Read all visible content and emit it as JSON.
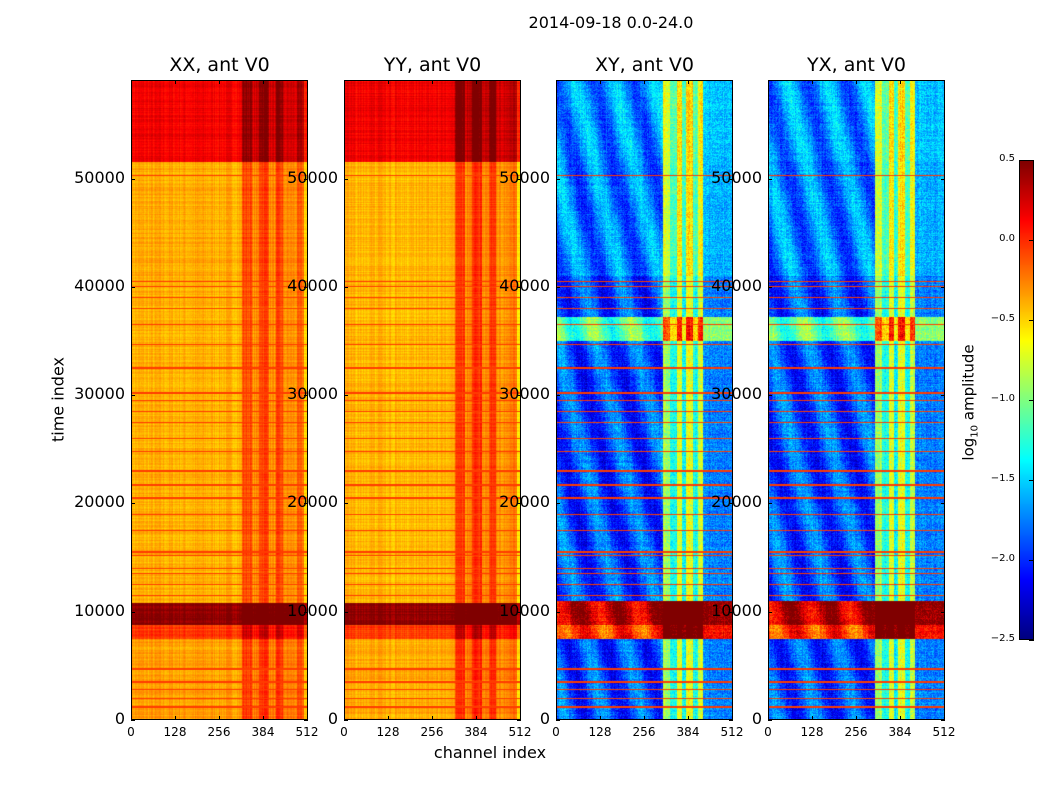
{
  "chart_data": {
    "type": "heatmap",
    "title": "2014-09-18 0.0-24.0",
    "xlabel": "channel index",
    "ylabel": "time index",
    "xlim": [
      0,
      512
    ],
    "ylim": [
      0,
      59100
    ],
    "xticks": [
      "0",
      "128",
      "256",
      "384",
      "512"
    ],
    "xtick_values": [
      0,
      128,
      256,
      384,
      512
    ],
    "yticks": [
      "0",
      "10000",
      "20000",
      "30000",
      "40000",
      "50000"
    ],
    "ytick_values": [
      0,
      10000,
      20000,
      30000,
      40000,
      50000
    ],
    "colorbar": {
      "label_prefix": "log",
      "label_sub": "10",
      "label_suffix": " amplitude",
      "colormap": "jet",
      "range": [
        -2.5,
        0.5
      ],
      "ticks": [
        "0.5",
        "0.0",
        "−0.5",
        "−1.0",
        "−1.5",
        "−2.0",
        "−2.5"
      ],
      "tick_values": [
        0.5,
        0.0,
        -0.5,
        -1.0,
        -1.5,
        -2.0,
        -2.5
      ]
    },
    "flag_lines_time": [
      1200,
      2000,
      2800,
      3500,
      4700,
      11500,
      12500,
      13500,
      14000,
      15200,
      15500,
      17500,
      19000,
      20500,
      21700,
      23000,
      24800,
      26000,
      27500,
      28500,
      29500,
      30200,
      32500,
      34700,
      36500,
      38000,
      39000,
      40000,
      40500,
      50300
    ],
    "panels": [
      {
        "title": "XX, ant V0",
        "time_bands": [
          [
            0,
            7500,
            -0.35
          ],
          [
            7500,
            8800,
            -0.05
          ],
          [
            8800,
            10800,
            0.45
          ],
          [
            10800,
            41000,
            -0.4
          ],
          [
            41000,
            51500,
            -0.38
          ],
          [
            51500,
            59100,
            0.15
          ]
        ],
        "channel_offsets": [
          [
            0,
            320,
            0
          ],
          [
            320,
            350,
            0.3
          ],
          [
            350,
            370,
            0.1
          ],
          [
            370,
            400,
            0.35
          ],
          [
            400,
            420,
            0.1
          ],
          [
            420,
            440,
            0.3
          ],
          [
            440,
            480,
            0.1
          ],
          [
            480,
            500,
            0.2
          ],
          [
            500,
            512,
            -0.1
          ]
        ]
      },
      {
        "title": "YY, ant V0",
        "time_bands": [
          [
            0,
            7500,
            -0.38
          ],
          [
            7500,
            8800,
            -0.05
          ],
          [
            8800,
            10800,
            0.45
          ],
          [
            10800,
            41000,
            -0.42
          ],
          [
            41000,
            51500,
            -0.42
          ],
          [
            51500,
            59100,
            0.15
          ]
        ],
        "channel_offsets": [
          [
            0,
            320,
            0
          ],
          [
            320,
            350,
            0.35
          ],
          [
            350,
            370,
            0.15
          ],
          [
            370,
            400,
            0.4
          ],
          [
            400,
            420,
            0.15
          ],
          [
            420,
            440,
            0.35
          ],
          [
            440,
            480,
            0.1
          ],
          [
            480,
            500,
            0.2
          ],
          [
            500,
            512,
            -0.1
          ]
        ]
      },
      {
        "title": "XY, ant V0",
        "time_bands": [
          [
            0,
            7500,
            -1.9
          ],
          [
            7500,
            8800,
            -0.05
          ],
          [
            8800,
            11000,
            0.3
          ],
          [
            11000,
            35000,
            -1.9
          ],
          [
            35000,
            37200,
            -1.1
          ],
          [
            37200,
            41000,
            -1.9
          ],
          [
            41000,
            51500,
            -1.75
          ],
          [
            51500,
            59100,
            -1.7
          ]
        ],
        "channel_offsets": [
          [
            0,
            310,
            0
          ],
          [
            310,
            330,
            1.0
          ],
          [
            330,
            350,
            0.6
          ],
          [
            350,
            365,
            1.2
          ],
          [
            365,
            375,
            0.5
          ],
          [
            375,
            395,
            1.2
          ],
          [
            395,
            410,
            0.6
          ],
          [
            410,
            425,
            1.1
          ],
          [
            425,
            512,
            0.15
          ]
        ]
      },
      {
        "title": "YX, ant V0",
        "time_bands": [
          [
            0,
            7500,
            -1.9
          ],
          [
            7500,
            8800,
            -0.05
          ],
          [
            8800,
            11000,
            0.3
          ],
          [
            11000,
            35000,
            -1.9
          ],
          [
            35000,
            37200,
            -1.1
          ],
          [
            37200,
            41000,
            -1.9
          ],
          [
            41000,
            51500,
            -1.75
          ],
          [
            51500,
            59100,
            -1.7
          ]
        ],
        "channel_offsets": [
          [
            0,
            310,
            0
          ],
          [
            310,
            330,
            1.0
          ],
          [
            330,
            350,
            0.6
          ],
          [
            350,
            365,
            1.2
          ],
          [
            365,
            375,
            0.5
          ],
          [
            375,
            395,
            1.2
          ],
          [
            395,
            410,
            0.6
          ],
          [
            410,
            425,
            1.1
          ],
          [
            425,
            512,
            0.15
          ]
        ]
      }
    ]
  }
}
